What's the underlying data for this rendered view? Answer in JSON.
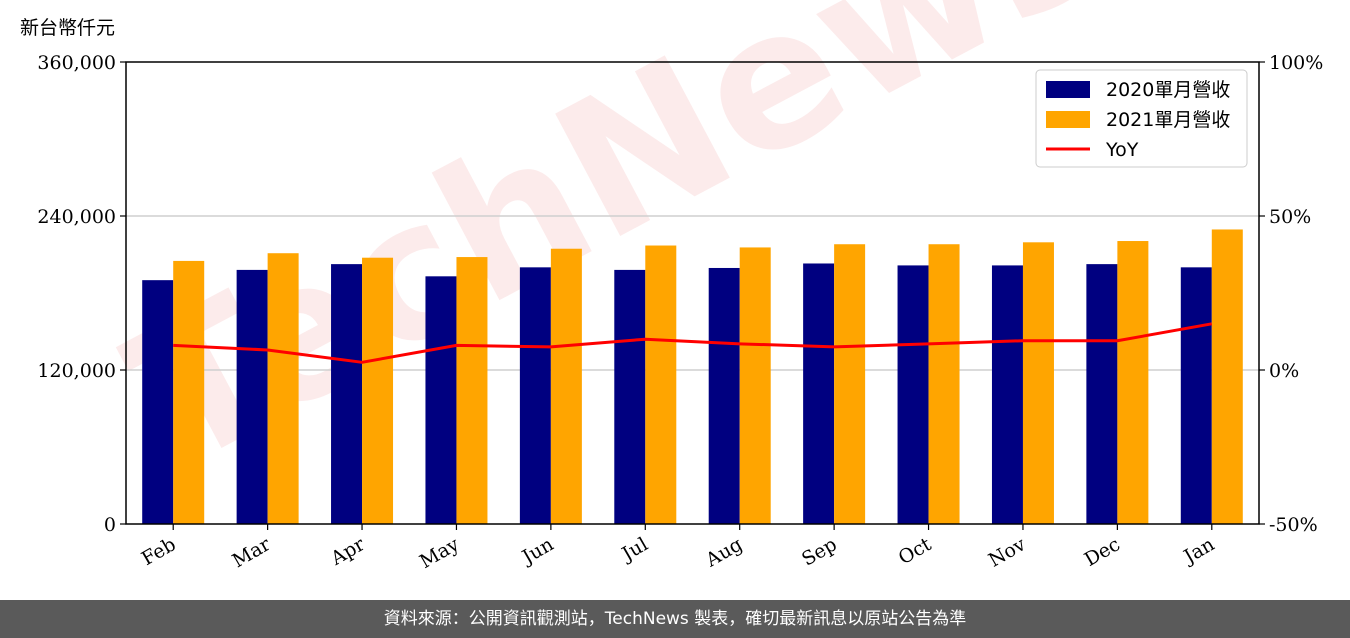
{
  "chart_data": {
    "type": "bar",
    "unit_label": "新台幣仟元",
    "categories": [
      "Feb",
      "Mar",
      "Apr",
      "May",
      "Jun",
      "Jul",
      "Aug",
      "Sep",
      "Oct",
      "Nov",
      "Dec",
      "Jan"
    ],
    "series": [
      {
        "name": "2020單月營收",
        "color": "#000080",
        "values": [
          190000,
          198000,
          202500,
          193000,
          200000,
          198000,
          199500,
          203000,
          201500,
          201500,
          202500,
          200000
        ]
      },
      {
        "name": "2021單月營收",
        "color": "#FFA500",
        "values": [
          205000,
          211000,
          207500,
          208000,
          214500,
          217000,
          215500,
          218000,
          218000,
          219500,
          220500,
          229500
        ]
      }
    ],
    "yoy": {
      "name": "YoY",
      "color": "#FF0000",
      "type": "line",
      "axis": "right",
      "values": [
        8,
        6.5,
        2.5,
        8,
        7.5,
        10,
        8.5,
        7.5,
        8.5,
        9.5,
        9.5,
        15
      ]
    },
    "ylim": [
      0,
      360000
    ],
    "yticks": [
      0,
      120000,
      240000,
      360000
    ],
    "ytick_labels": [
      "0",
      "120,000",
      "240,000",
      "360,000"
    ],
    "y2lim": [
      -50,
      100
    ],
    "y2ticks": [
      -50,
      0,
      50,
      100
    ],
    "y2tick_labels": [
      "-50%",
      "0%",
      "50%",
      "100%"
    ],
    "grid": "horizontal",
    "legend_position": "top-right"
  },
  "watermark": "TechNews",
  "footer_text": "資料來源：公開資訊觀測站，TechNews 製表，確切最新訊息以原站公告為準"
}
